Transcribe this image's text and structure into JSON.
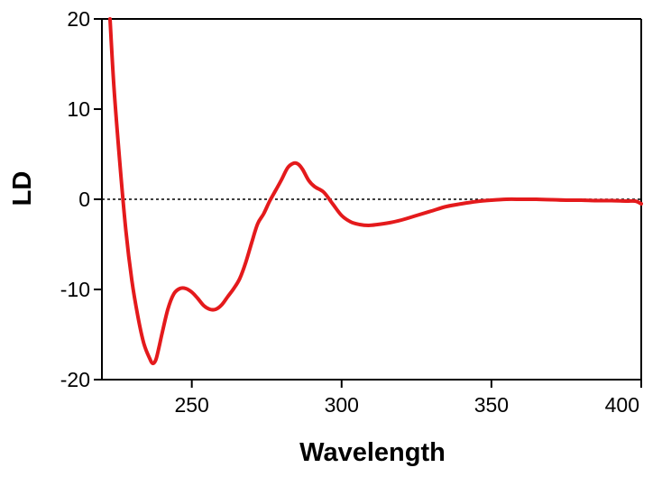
{
  "chart_data": {
    "type": "line",
    "title": "",
    "xlabel": "Wavelength",
    "ylabel": "LD",
    "xlim": [
      220,
      400
    ],
    "ylim": [
      -20,
      20
    ],
    "x_ticks": [
      "250",
      "300",
      "350",
      "400"
    ],
    "y_ticks": [
      "20",
      "10",
      "0",
      "-10",
      "-20"
    ],
    "x_tick_values": [
      250,
      300,
      350,
      400
    ],
    "y_tick_values": [
      20,
      10,
      0,
      -10,
      -20
    ],
    "grid": false,
    "reference_line": {
      "y": 0,
      "style": "dotted"
    },
    "colors": {
      "line": "#e41a1c",
      "axis": "#000000",
      "reference": "#000000"
    },
    "series": [
      {
        "x": [
          222.7,
          224,
          226,
          228,
          230,
          232,
          234,
          236,
          237,
          238,
          239,
          240,
          242,
          244,
          246,
          248,
          250,
          252,
          254,
          256,
          258,
          260,
          262,
          264,
          266,
          268,
          270,
          272,
          274,
          276,
          278,
          280,
          282,
          284,
          285.5,
          287,
          289,
          291,
          294,
          297,
          300,
          303,
          306,
          309,
          312,
          316,
          320,
          325,
          330,
          335,
          340,
          345,
          350,
          355,
          360,
          365,
          370,
          375,
          380,
          385,
          390,
          395,
          398,
          400
        ],
        "y": [
          20.0,
          12.5,
          4.0,
          -3.5,
          -9.0,
          -13.0,
          -16.0,
          -17.7,
          -18.2,
          -17.8,
          -16.5,
          -15.0,
          -12.2,
          -10.5,
          -9.9,
          -9.9,
          -10.3,
          -11.0,
          -11.8,
          -12.2,
          -12.2,
          -11.7,
          -10.8,
          -9.9,
          -8.8,
          -7.0,
          -4.8,
          -2.7,
          -1.6,
          -0.2,
          1.0,
          2.2,
          3.5,
          4.0,
          3.9,
          3.3,
          2.1,
          1.4,
          0.8,
          -0.5,
          -1.8,
          -2.5,
          -2.8,
          -2.9,
          -2.8,
          -2.6,
          -2.3,
          -1.8,
          -1.3,
          -0.8,
          -0.5,
          -0.25,
          -0.1,
          0.0,
          0.0,
          0.0,
          -0.05,
          -0.1,
          -0.1,
          -0.15,
          -0.15,
          -0.2,
          -0.2,
          -0.5
        ]
      }
    ]
  }
}
